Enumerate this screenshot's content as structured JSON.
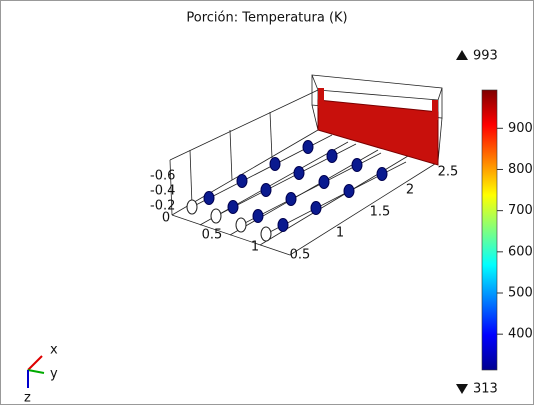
{
  "title": "Porción: Temperatura (K)",
  "colorbar": {
    "max": 993,
    "min": 313,
    "ticks": [
      400,
      500,
      600,
      700,
      800,
      900
    ]
  },
  "scene_labels": [
    -0.6,
    -0.4,
    -0.2,
    0,
    0.5,
    1,
    0.5,
    1,
    1.5,
    2,
    2.5
  ],
  "triad": {
    "x": "x",
    "y": "y",
    "z": "z"
  }
}
